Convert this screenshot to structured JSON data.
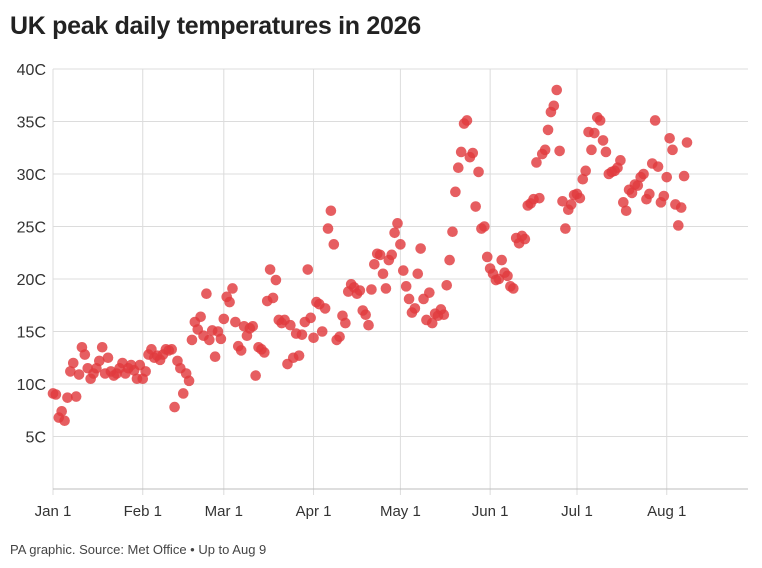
{
  "chart_data": {
    "type": "scatter",
    "title": "UK peak daily temperatures in 2026",
    "xlabel": "",
    "ylabel": "",
    "x_unit": "day of year 2026 (Jan 1 = 0)",
    "xlim": [
      0,
      242
    ],
    "ylim": [
      0,
      40
    ],
    "grid": true,
    "color": "#e03a3e",
    "y_ticks": [
      {
        "value": 5,
        "label": "5C"
      },
      {
        "value": 10,
        "label": "10C"
      },
      {
        "value": 15,
        "label": "15C"
      },
      {
        "value": 20,
        "label": "20C"
      },
      {
        "value": 25,
        "label": "25C"
      },
      {
        "value": 30,
        "label": "30C"
      },
      {
        "value": 35,
        "label": "35C"
      },
      {
        "value": 40,
        "label": "40C"
      }
    ],
    "x_ticks": [
      {
        "value": 0,
        "label": "Jan 1"
      },
      {
        "value": 31,
        "label": "Feb 1"
      },
      {
        "value": 59,
        "label": "Mar 1"
      },
      {
        "value": 90,
        "label": "Apr 1"
      },
      {
        "value": 120,
        "label": "May 1"
      },
      {
        "value": 151,
        "label": "Jun 1"
      },
      {
        "value": 181,
        "label": "Jul 1"
      },
      {
        "value": 212,
        "label": "Aug 1"
      }
    ],
    "points": [
      [
        0,
        9.1
      ],
      [
        1,
        9.0
      ],
      [
        2,
        6.8
      ],
      [
        3,
        7.4
      ],
      [
        4,
        6.5
      ],
      [
        5,
        8.7
      ],
      [
        6,
        11.2
      ],
      [
        7,
        12.0
      ],
      [
        8,
        8.8
      ],
      [
        9,
        10.9
      ],
      [
        10,
        13.5
      ],
      [
        11,
        12.8
      ],
      [
        12,
        11.5
      ],
      [
        13,
        10.5
      ],
      [
        14,
        11.0
      ],
      [
        15,
        11.5
      ],
      [
        16,
        12.2
      ],
      [
        17,
        13.5
      ],
      [
        18,
        11.0
      ],
      [
        19,
        12.5
      ],
      [
        20,
        11.2
      ],
      [
        21,
        10.8
      ],
      [
        22,
        11.0
      ],
      [
        23,
        11.5
      ],
      [
        24,
        12.0
      ],
      [
        25,
        11.0
      ],
      [
        26,
        11.5
      ],
      [
        27,
        11.8
      ],
      [
        28,
        11.3
      ],
      [
        29,
        10.5
      ],
      [
        30,
        11.8
      ],
      [
        31,
        10.5
      ],
      [
        32,
        11.2
      ],
      [
        33,
        12.8
      ],
      [
        34,
        13.3
      ],
      [
        35,
        12.5
      ],
      [
        36,
        12.7
      ],
      [
        37,
        12.3
      ],
      [
        38,
        12.8
      ],
      [
        39,
        13.3
      ],
      [
        40,
        13.2
      ],
      [
        41,
        13.3
      ],
      [
        42,
        7.8
      ],
      [
        43,
        12.2
      ],
      [
        44,
        11.5
      ],
      [
        45,
        9.1
      ],
      [
        46,
        11.0
      ],
      [
        47,
        10.3
      ],
      [
        48,
        14.2
      ],
      [
        49,
        15.9
      ],
      [
        50,
        15.2
      ],
      [
        51,
        16.4
      ],
      [
        52,
        14.6
      ],
      [
        53,
        18.6
      ],
      [
        54,
        14.2
      ],
      [
        55,
        15.1
      ],
      [
        56,
        12.6
      ],
      [
        57,
        15.0
      ],
      [
        58,
        14.3
      ],
      [
        59,
        16.2
      ],
      [
        60,
        18.3
      ],
      [
        61,
        17.8
      ],
      [
        62,
        19.1
      ],
      [
        63,
        15.9
      ],
      [
        64,
        13.6
      ],
      [
        65,
        13.2
      ],
      [
        66,
        15.5
      ],
      [
        67,
        14.6
      ],
      [
        68,
        15.3
      ],
      [
        69,
        15.5
      ],
      [
        70,
        10.8
      ],
      [
        71,
        13.5
      ],
      [
        72,
        13.3
      ],
      [
        73,
        13.0
      ],
      [
        74,
        17.9
      ],
      [
        75,
        20.9
      ],
      [
        76,
        18.2
      ],
      [
        77,
        19.9
      ],
      [
        78,
        16.1
      ],
      [
        79,
        15.8
      ],
      [
        80,
        16.1
      ],
      [
        81,
        11.9
      ],
      [
        82,
        15.6
      ],
      [
        83,
        12.5
      ],
      [
        84,
        14.8
      ],
      [
        85,
        12.7
      ],
      [
        86,
        14.7
      ],
      [
        87,
        15.9
      ],
      [
        88,
        20.9
      ],
      [
        89,
        16.3
      ],
      [
        90,
        14.4
      ],
      [
        91,
        17.8
      ],
      [
        92,
        17.6
      ],
      [
        93,
        15.0
      ],
      [
        94,
        17.2
      ],
      [
        95,
        24.8
      ],
      [
        96,
        26.5
      ],
      [
        97,
        23.3
      ],
      [
        98,
        14.2
      ],
      [
        99,
        14.5
      ],
      [
        100,
        16.5
      ],
      [
        101,
        15.8
      ],
      [
        102,
        18.8
      ],
      [
        103,
        19.5
      ],
      [
        104,
        19.2
      ],
      [
        105,
        18.6
      ],
      [
        106,
        18.9
      ],
      [
        107,
        17.0
      ],
      [
        108,
        16.6
      ],
      [
        109,
        15.6
      ],
      [
        110,
        19.0
      ],
      [
        111,
        21.4
      ],
      [
        112,
        22.4
      ],
      [
        113,
        22.3
      ],
      [
        114,
        20.5
      ],
      [
        115,
        19.1
      ],
      [
        116,
        21.8
      ],
      [
        117,
        22.3
      ],
      [
        118,
        24.4
      ],
      [
        119,
        25.3
      ],
      [
        120,
        23.3
      ],
      [
        121,
        20.8
      ],
      [
        122,
        19.3
      ],
      [
        123,
        18.1
      ],
      [
        124,
        16.8
      ],
      [
        125,
        17.2
      ],
      [
        126,
        20.5
      ],
      [
        127,
        22.9
      ],
      [
        128,
        18.1
      ],
      [
        129,
        16.1
      ],
      [
        130,
        18.7
      ],
      [
        131,
        15.8
      ],
      [
        132,
        16.7
      ],
      [
        133,
        16.5
      ],
      [
        134,
        17.1
      ],
      [
        135,
        16.6
      ],
      [
        136,
        19.4
      ],
      [
        137,
        21.8
      ],
      [
        138,
        24.5
      ],
      [
        139,
        28.3
      ],
      [
        140,
        30.6
      ],
      [
        141,
        32.1
      ],
      [
        142,
        34.8
      ],
      [
        143,
        35.1
      ],
      [
        144,
        31.6
      ],
      [
        145,
        32.0
      ],
      [
        146,
        26.9
      ],
      [
        147,
        30.2
      ],
      [
        148,
        24.8
      ],
      [
        149,
        25.0
      ],
      [
        150,
        22.1
      ],
      [
        151,
        21.0
      ],
      [
        152,
        20.5
      ],
      [
        153,
        19.9
      ],
      [
        154,
        20.0
      ],
      [
        155,
        21.8
      ],
      [
        156,
        20.6
      ],
      [
        157,
        20.3
      ],
      [
        158,
        19.3
      ],
      [
        159,
        19.1
      ],
      [
        160,
        23.9
      ],
      [
        161,
        23.4
      ],
      [
        162,
        24.1
      ],
      [
        163,
        23.8
      ],
      [
        164,
        27.0
      ],
      [
        165,
        27.2
      ],
      [
        166,
        27.6
      ],
      [
        167,
        31.1
      ],
      [
        168,
        27.7
      ],
      [
        169,
        31.9
      ],
      [
        170,
        32.3
      ],
      [
        171,
        34.2
      ],
      [
        172,
        35.9
      ],
      [
        173,
        36.5
      ],
      [
        174,
        38.0
      ],
      [
        175,
        32.2
      ],
      [
        176,
        27.4
      ],
      [
        177,
        24.8
      ],
      [
        178,
        26.6
      ],
      [
        179,
        27.1
      ],
      [
        180,
        28.0
      ],
      [
        181,
        28.1
      ],
      [
        182,
        27.7
      ],
      [
        183,
        29.5
      ],
      [
        184,
        30.3
      ],
      [
        185,
        34.0
      ],
      [
        186,
        32.3
      ],
      [
        187,
        33.9
      ],
      [
        188,
        35.4
      ],
      [
        189,
        35.1
      ],
      [
        190,
        33.2
      ],
      [
        191,
        32.1
      ],
      [
        192,
        30.0
      ],
      [
        193,
        30.2
      ],
      [
        194,
        30.3
      ],
      [
        195,
        30.6
      ],
      [
        196,
        31.3
      ],
      [
        197,
        27.3
      ],
      [
        198,
        26.5
      ],
      [
        199,
        28.5
      ],
      [
        200,
        28.2
      ],
      [
        201,
        29.0
      ],
      [
        202,
        28.9
      ],
      [
        203,
        29.7
      ],
      [
        204,
        30.0
      ],
      [
        205,
        27.6
      ],
      [
        206,
        28.1
      ],
      [
        207,
        31.0
      ],
      [
        208,
        35.1
      ],
      [
        209,
        30.7
      ],
      [
        210,
        27.3
      ],
      [
        211,
        27.9
      ],
      [
        212,
        29.7
      ],
      [
        213,
        33.4
      ],
      [
        214,
        32.3
      ],
      [
        215,
        27.1
      ],
      [
        216,
        25.1
      ],
      [
        217,
        26.8
      ],
      [
        218,
        29.8
      ],
      [
        219,
        33.0
      ]
    ]
  },
  "footer": {
    "source": "PA graphic. Source: Met Office • Up to Aug 9"
  }
}
